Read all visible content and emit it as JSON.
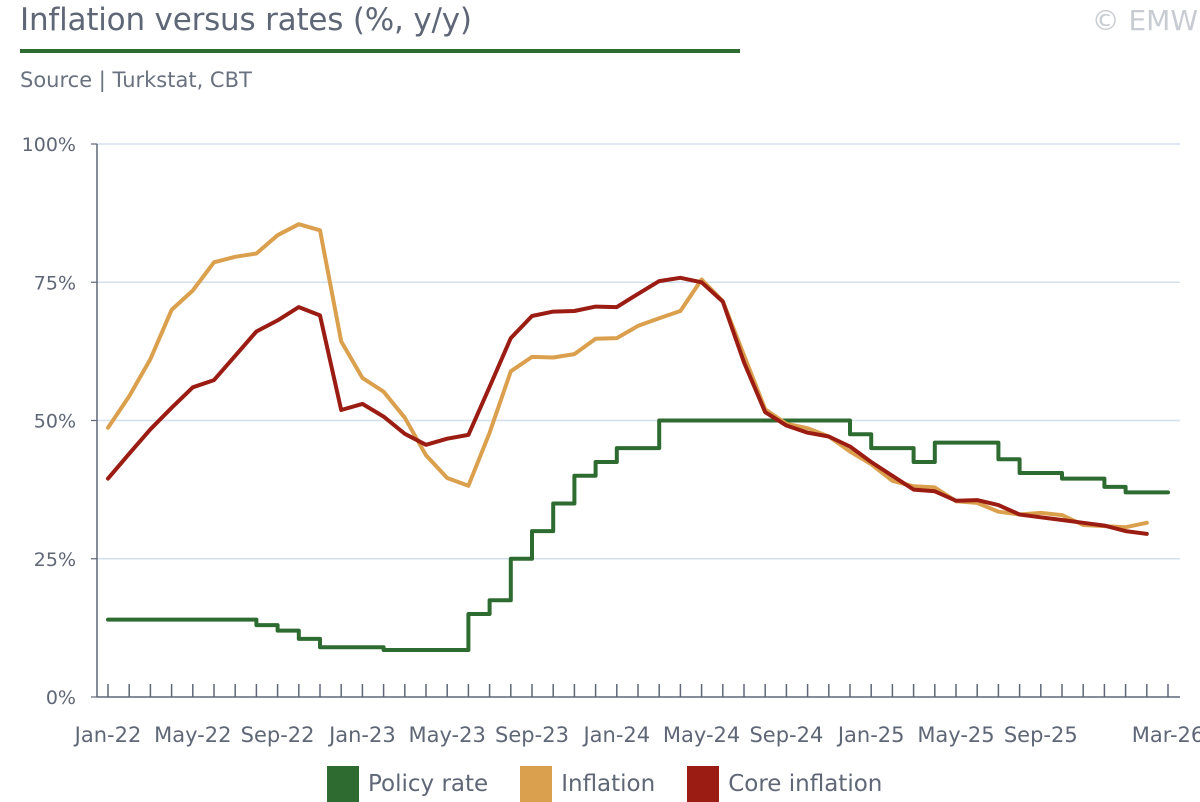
{
  "header": {
    "title": "Inflation versus rates (%, y/y)",
    "subtitle": "Source | Turkstat, CBT",
    "copyright": "© EMW"
  },
  "chart_data": {
    "type": "line",
    "title": "Inflation versus rates (%, y/y)",
    "xlabel": "",
    "ylabel": "",
    "ylim": [
      0,
      100
    ],
    "y_ticks": [
      "0%",
      "25%",
      "50%",
      "75%",
      "100%"
    ],
    "x_tick_labels": [
      "Jan-22",
      "May-22",
      "Sep-22",
      "Jan-23",
      "May-23",
      "Sep-23",
      "Jan-24",
      "May-24",
      "Sep-24",
      "Jan-25",
      "May-25",
      "Sep-25",
      "Mar-26"
    ],
    "x": [
      "Jan-22",
      "Feb-22",
      "Mar-22",
      "Apr-22",
      "May-22",
      "Jun-22",
      "Jul-22",
      "Aug-22",
      "Sep-22",
      "Oct-22",
      "Nov-22",
      "Dec-22",
      "Jan-23",
      "Feb-23",
      "Mar-23",
      "Apr-23",
      "May-23",
      "Jun-23",
      "Jul-23",
      "Aug-23",
      "Sep-23",
      "Oct-23",
      "Nov-23",
      "Dec-23",
      "Jan-24",
      "Feb-24",
      "Mar-24",
      "Apr-24",
      "May-24",
      "Jun-24",
      "Jul-24",
      "Aug-24",
      "Sep-24",
      "Oct-24",
      "Nov-24",
      "Dec-24",
      "Jan-25",
      "Feb-25",
      "Mar-25",
      "Apr-25",
      "May-25",
      "Jun-25",
      "Jul-25",
      "Aug-25",
      "Sep-25",
      "Oct-25",
      "Nov-25",
      "Dec-25",
      "Jan-26",
      "Feb-26",
      "Mar-26"
    ],
    "grid": true,
    "legend_position": "bottom",
    "series": [
      {
        "name": "Policy rate",
        "color": "#2e6b30",
        "step": true,
        "values": [
          14,
          14,
          14,
          14,
          14,
          14,
          14,
          13,
          12,
          10.5,
          9,
          9,
          9,
          8.5,
          8.5,
          8.5,
          8.5,
          15,
          17.5,
          25,
          30,
          35,
          40,
          42.5,
          45,
          45,
          50,
          50,
          50,
          50,
          50,
          50,
          50,
          50,
          50,
          47.5,
          45,
          45,
          42.5,
          46,
          46,
          46,
          43,
          40.5,
          40.5,
          39.5,
          39.5,
          38,
          37,
          37,
          37
        ]
      },
      {
        "name": "Inflation",
        "color": "#dba04e",
        "step": false,
        "values": [
          48.7,
          54.4,
          61.1,
          70.0,
          73.5,
          78.6,
          79.6,
          80.2,
          83.5,
          85.5,
          84.4,
          64.3,
          57.7,
          55.2,
          50.5,
          43.7,
          39.6,
          38.2,
          47.8,
          58.9,
          61.5,
          61.4,
          62.0,
          64.8,
          64.9,
          67.1,
          68.5,
          69.8,
          75.5,
          71.6,
          61.8,
          52.0,
          49.4,
          48.6,
          47.1,
          44.4,
          42.1,
          39.1,
          38.1,
          37.9,
          35.4,
          35.1,
          33.5,
          33.0,
          33.3,
          32.9,
          31.1,
          30.9,
          30.7,
          31.5,
          null
        ]
      },
      {
        "name": "Core inflation",
        "color": "#9b1c12",
        "step": false,
        "values": [
          39.5,
          44.0,
          48.4,
          52.3,
          56.0,
          57.3,
          61.7,
          66.1,
          68.1,
          70.5,
          69.0,
          51.9,
          53.0,
          50.7,
          47.6,
          45.6,
          46.7,
          47.4,
          56.1,
          64.9,
          68.9,
          69.7,
          69.8,
          70.6,
          70.5,
          72.9,
          75.2,
          75.8,
          75.0,
          71.5,
          60.5,
          51.5,
          49.1,
          47.8,
          47.1,
          45.3,
          42.5,
          40.0,
          37.5,
          37.2,
          35.5,
          35.6,
          34.7,
          33.0,
          32.5,
          32.0,
          31.5,
          31.0,
          30.0,
          29.5,
          null
        ]
      }
    ]
  }
}
